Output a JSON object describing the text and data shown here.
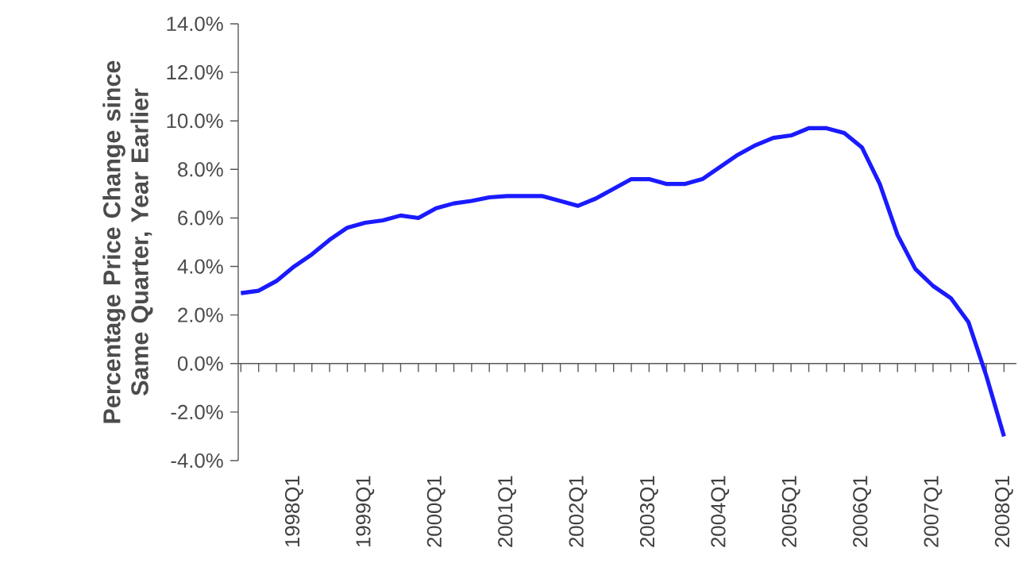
{
  "chart_data": {
    "type": "line",
    "ylabel": "Percentage Price Change since Same Quarter, Year Earlier",
    "categories": [
      null,
      null,
      null,
      "1998Q1",
      null,
      null,
      null,
      "1999Q1",
      null,
      null,
      null,
      "2000Q1",
      null,
      null,
      null,
      "2001Q1",
      null,
      null,
      null,
      "2002Q1",
      null,
      null,
      null,
      "2003Q1",
      null,
      null,
      null,
      "2004Q1",
      null,
      null,
      null,
      "2005Q1",
      null,
      null,
      null,
      "2006Q1",
      null,
      null,
      null,
      "2007Q1",
      null,
      null,
      null,
      "2008Q1"
    ],
    "series": [
      {
        "color": "#1a1aff",
        "values": [
          2.9,
          3.0,
          3.4,
          4.0,
          4.5,
          5.1,
          5.6,
          5.8,
          5.9,
          6.1,
          6.0,
          6.4,
          6.6,
          6.7,
          6.85,
          6.9,
          6.9,
          6.9,
          6.7,
          6.5,
          6.8,
          7.2,
          7.6,
          7.6,
          7.4,
          7.4,
          7.6,
          8.1,
          8.6,
          9.0,
          9.3,
          9.4,
          9.7,
          9.7,
          9.5,
          8.9,
          7.4,
          5.3,
          3.9,
          3.2,
          2.7,
          1.7,
          -0.5,
          -3.0
        ]
      }
    ],
    "ylim": [
      -4,
      14
    ],
    "yticks": [
      {
        "value": -4,
        "label": "-4.0%"
      },
      {
        "value": -2,
        "label": "-2.0%"
      },
      {
        "value": 0,
        "label": "0.0%"
      },
      {
        "value": 2,
        "label": "2.0%"
      },
      {
        "value": 4,
        "label": "4.0%"
      },
      {
        "value": 6,
        "label": "6.0%"
      },
      {
        "value": 8,
        "label": "8.0%"
      },
      {
        "value": 10,
        "label": "10.0%"
      },
      {
        "value": 12,
        "label": "12.0%"
      },
      {
        "value": 14,
        "label": "14.0%"
      }
    ],
    "marker": "none",
    "line_style": "solid"
  }
}
